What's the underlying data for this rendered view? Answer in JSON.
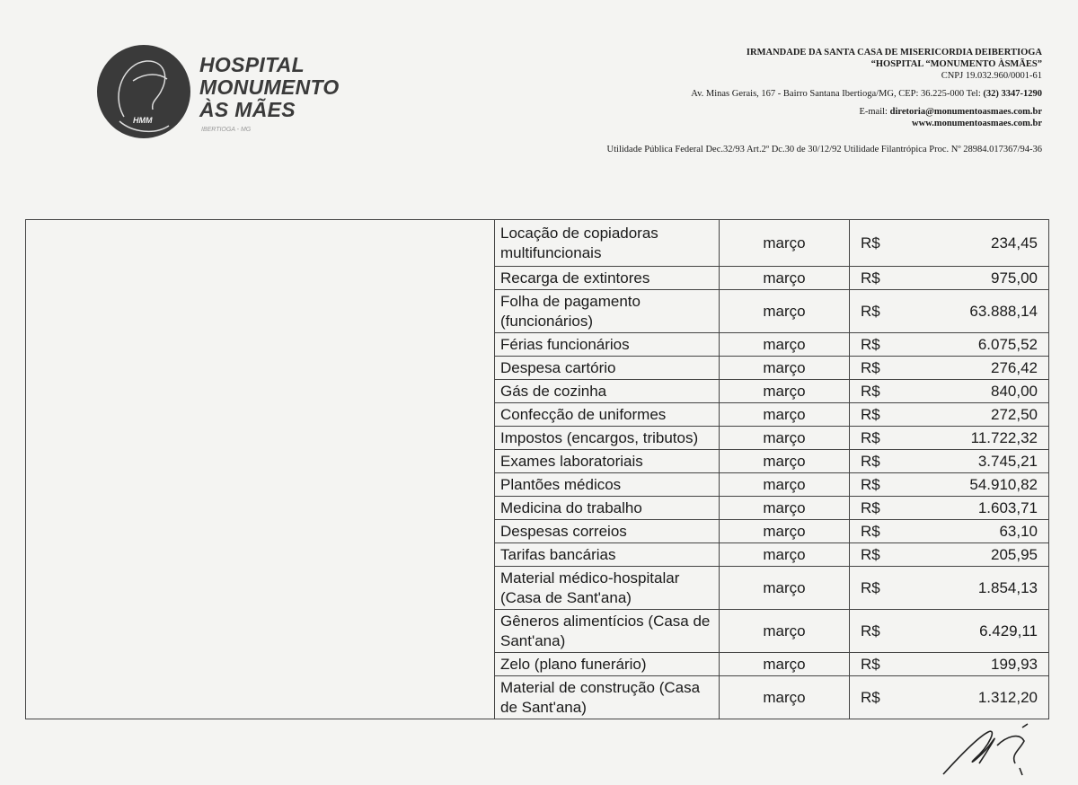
{
  "logo": {
    "initials": "HMM",
    "lines": [
      "HOSPITAL",
      "MONUMENTO",
      "ÀS MÃES"
    ],
    "location": "IBERTIOGA - MG"
  },
  "letterhead": {
    "org": "IRMANDADE DA SANTA CASA DE MISERICORDIA DEIBERTIOGA",
    "hospital": "“HOSPITAL “MONUMENTO ÀSMÃES”",
    "cnpj": "CNPJ 19.032.960/0001-61",
    "address": "Av. Minas Gerais, 167 - Bairro Santana Ibertioga/MG, CEP: 36.225-000 Tel: ",
    "phone": "(32) 3347-1290",
    "email_label": "E-mail: ",
    "email": "diretoria@monumentoasmaes.com.br",
    "website": "www.monumentoasmaes.com.br",
    "utility": "Utilidade Pública Federal Dec.32/93 Art.2º Dc.30 de 30/12/92 Utilidade Filantrópica Proc. Nº 28984.017367/94-36"
  },
  "expenses": [
    {
      "description": "Locação de copiadoras multifuncionais",
      "month": "março",
      "currency": "R$",
      "amount": "234,45"
    },
    {
      "description": "Recarga de extintores",
      "month": "março",
      "currency": "R$",
      "amount": "975,00"
    },
    {
      "description": "Folha de pagamento (funcionários)",
      "month": "março",
      "currency": "R$",
      "amount": "63.888,14"
    },
    {
      "description": "Férias funcionários",
      "month": "março",
      "currency": "R$",
      "amount": "6.075,52"
    },
    {
      "description": "Despesa cartório",
      "month": "março",
      "currency": "R$",
      "amount": "276,42"
    },
    {
      "description": "Gás de cozinha",
      "month": "março",
      "currency": "R$",
      "amount": "840,00"
    },
    {
      "description": "Confecção de uniformes",
      "month": "março",
      "currency": "R$",
      "amount": "272,50"
    },
    {
      "description": "Impostos (encargos, tributos)",
      "month": "março",
      "currency": "R$",
      "amount": "11.722,32"
    },
    {
      "description": "Exames laboratoriais",
      "month": "março",
      "currency": "R$",
      "amount": "3.745,21"
    },
    {
      "description": "Plantões médicos",
      "month": "março",
      "currency": "R$",
      "amount": "54.910,82"
    },
    {
      "description": "Medicina do trabalho",
      "month": "março",
      "currency": "R$",
      "amount": "1.603,71"
    },
    {
      "description": "Despesas correios",
      "month": "março",
      "currency": "R$",
      "amount": "63,10"
    },
    {
      "description": "Tarifas bancárias",
      "month": "março",
      "currency": "R$",
      "amount": "205,95"
    },
    {
      "description": "Material médico-hospitalar (Casa de Sant'ana)",
      "month": "março",
      "currency": "R$",
      "amount": "1.854,13"
    },
    {
      "description": "Gêneros alimentícios (Casa de Sant'ana)",
      "month": "março",
      "currency": "R$",
      "amount": "6.429,11"
    },
    {
      "description": "Zelo (plano funerário)",
      "month": "março",
      "currency": "R$",
      "amount": "199,93"
    },
    {
      "description": "Material de construção (Casa de Sant'ana)",
      "month": "março",
      "currency": "R$",
      "amount": "1.312,20"
    }
  ]
}
